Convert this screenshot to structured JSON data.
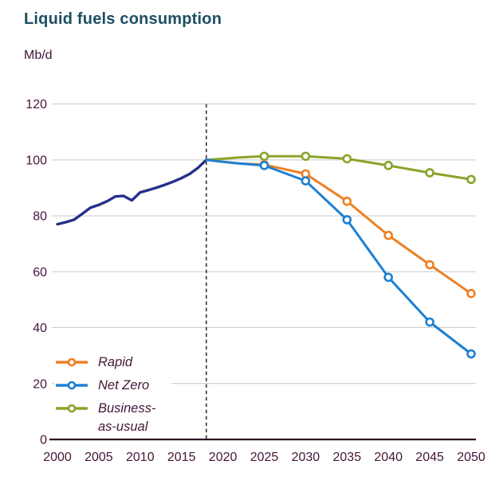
{
  "chart": {
    "title": "Liquid fuels consumption",
    "unit": "Mb/d"
  },
  "colors": {
    "title_text": "#1d4e63",
    "axis_text": "#441637",
    "axis_baseline": "#2e0b24",
    "gridline": "#c9c9c9",
    "forecast_divider": "#2a1124",
    "background": "#ffffff",
    "history_line": "#27308a",
    "rapid_line": "#ee8023",
    "net_zero_line": "#1d80d3",
    "business_as_usual_line": "#8aa42a"
  },
  "legend": {
    "items": [
      {
        "label": "Rapid",
        "series": "Rapid",
        "color": "#ee8023"
      },
      {
        "label": "Net Zero",
        "series": "Net Zero",
        "color": "#1d80d3"
      },
      {
        "label": "Business-as-usual",
        "series": "Business-as-usual",
        "color": "#8aa42a"
      }
    ]
  },
  "chart_data": {
    "type": "line",
    "title": "Liquid fuels consumption",
    "ylabel": "Mb/d",
    "xlabel": "",
    "xlim": [
      2000,
      2050
    ],
    "ylim": [
      0,
      120
    ],
    "x_ticks": [
      2000,
      2005,
      2010,
      2015,
      2020,
      2025,
      2030,
      2035,
      2040,
      2045,
      2050
    ],
    "y_ticks": [
      0,
      20,
      40,
      60,
      80,
      100,
      120
    ],
    "grid": "horizontal gridlines at every y tick",
    "legend_position": "inside lower-left",
    "forecast_divider_year": 2018,
    "series": [
      {
        "name": "History",
        "color": "#27308a",
        "marker_years": [],
        "x": [
          2000,
          2001,
          2002,
          2003,
          2004,
          2005,
          2006,
          2007,
          2008,
          2009,
          2010,
          2011,
          2012,
          2013,
          2014,
          2015,
          2016,
          2017,
          2018
        ],
        "y": [
          77.0,
          77.7,
          78.6,
          80.7,
          82.9,
          83.9,
          85.2,
          86.9,
          87.1,
          85.5,
          88.4,
          89.2,
          90.1,
          91.1,
          92.2,
          93.5,
          95.0,
          97.2,
          100.0
        ]
      },
      {
        "name": "Business-as-usual",
        "color": "#8aa42a",
        "marker_years": [
          2025,
          2030,
          2035,
          2040,
          2045,
          2050
        ],
        "x": [
          2018,
          2020,
          2022,
          2025,
          2030,
          2035,
          2040,
          2045,
          2050
        ],
        "y": [
          100.0,
          100.4,
          100.9,
          101.3,
          101.3,
          100.4,
          98.0,
          95.4,
          93.0
        ]
      },
      {
        "name": "Rapid",
        "color": "#ee8023",
        "marker_years": [
          2025,
          2030,
          2035,
          2040,
          2045,
          2050
        ],
        "x": [
          2018,
          2020,
          2022,
          2025,
          2030,
          2035,
          2040,
          2045,
          2050
        ],
        "y": [
          100.0,
          99.3,
          98.7,
          98.3,
          95.0,
          85.2,
          73.0,
          62.5,
          52.2
        ]
      },
      {
        "name": "Net Zero",
        "color": "#1d80d3",
        "marker_years": [
          2025,
          2030,
          2035,
          2040,
          2045,
          2050
        ],
        "x": [
          2018,
          2020,
          2022,
          2025,
          2030,
          2035,
          2040,
          2045,
          2050
        ],
        "y": [
          100.0,
          99.3,
          98.7,
          98.0,
          92.5,
          78.6,
          58.0,
          42.0,
          30.6
        ]
      }
    ]
  }
}
